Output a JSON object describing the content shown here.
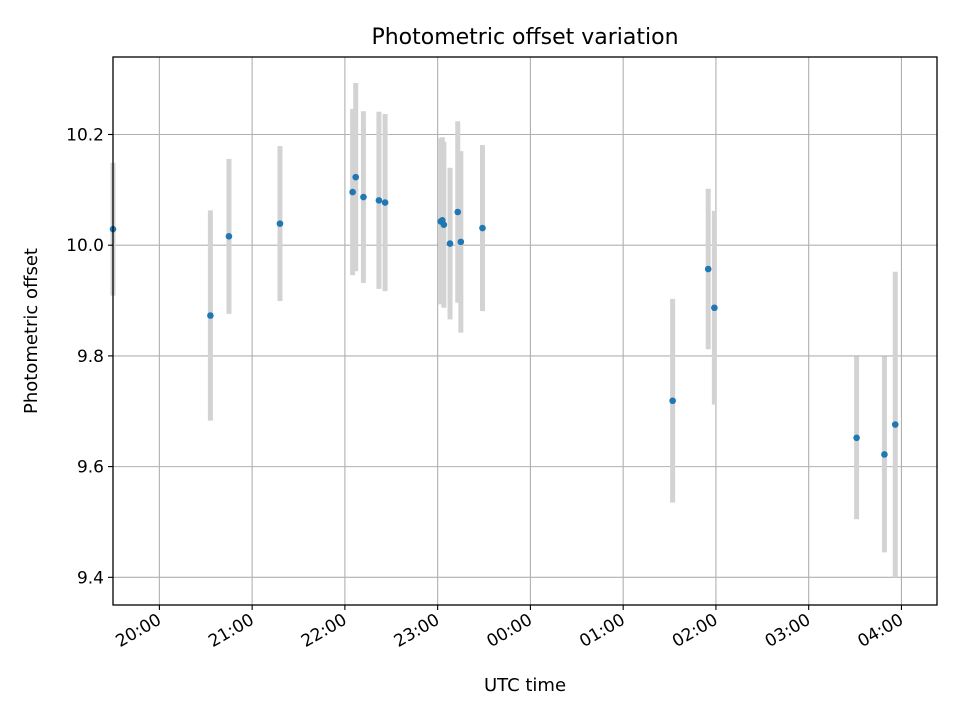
{
  "chart_data": {
    "type": "scatter",
    "title": "Photometric offset variation",
    "xlabel": "UTC time",
    "ylabel": "Photometric offset",
    "x_ticks": [
      "20:00",
      "21:00",
      "22:00",
      "23:00",
      "00:00",
      "01:00",
      "02:00",
      "03:00",
      "04:00"
    ],
    "y_ticks": [
      "9.4",
      "9.6",
      "9.8",
      "10.0",
      "10.2"
    ],
    "ylim": [
      9.35,
      10.34
    ],
    "xlim": [
      "19:30",
      "04:23"
    ],
    "grid": true,
    "colors": {
      "points": "#1f77b4",
      "errorbars": "#d3d3d3",
      "grid": "#b0b0b0"
    },
    "points": [
      {
        "x": "19:30",
        "y": 10.029,
        "err": 0.12
      },
      {
        "x": "20:33",
        "y": 9.873,
        "err": 0.19
      },
      {
        "x": "20:45",
        "y": 10.016,
        "err": 0.14
      },
      {
        "x": "21:18",
        "y": 10.039,
        "err": 0.14
      },
      {
        "x": "22:05",
        "y": 10.096,
        "err": 0.15
      },
      {
        "x": "22:07",
        "y": 10.123,
        "err": 0.17
      },
      {
        "x": "22:12",
        "y": 10.087,
        "err": 0.155
      },
      {
        "x": "22:22",
        "y": 10.081,
        "err": 0.16
      },
      {
        "x": "22:26",
        "y": 10.077,
        "err": 0.16
      },
      {
        "x": "23:02",
        "y": 10.043,
        "err": 0.15
      },
      {
        "x": "23:03",
        "y": 10.045,
        "err": 0.15
      },
      {
        "x": "23:04",
        "y": 10.037,
        "err": 0.15
      },
      {
        "x": "23:08",
        "y": 10.003,
        "err": 0.137
      },
      {
        "x": "23:13",
        "y": 10.06,
        "err": 0.164
      },
      {
        "x": "23:15",
        "y": 10.006,
        "err": 0.164
      },
      {
        "x": "23:29",
        "y": 10.031,
        "err": 0.15
      },
      {
        "x": "01:32",
        "y": 9.719,
        "err": 0.184
      },
      {
        "x": "01:55",
        "y": 9.957,
        "err": 0.145
      },
      {
        "x": "01:59",
        "y": 9.887,
        "err": 0.175
      },
      {
        "x": "03:31",
        "y": 9.652,
        "err": 0.147
      },
      {
        "x": "03:49",
        "y": 9.622,
        "err": 0.177
      },
      {
        "x": "03:56",
        "y": 9.676,
        "err": 0.276
      }
    ]
  }
}
